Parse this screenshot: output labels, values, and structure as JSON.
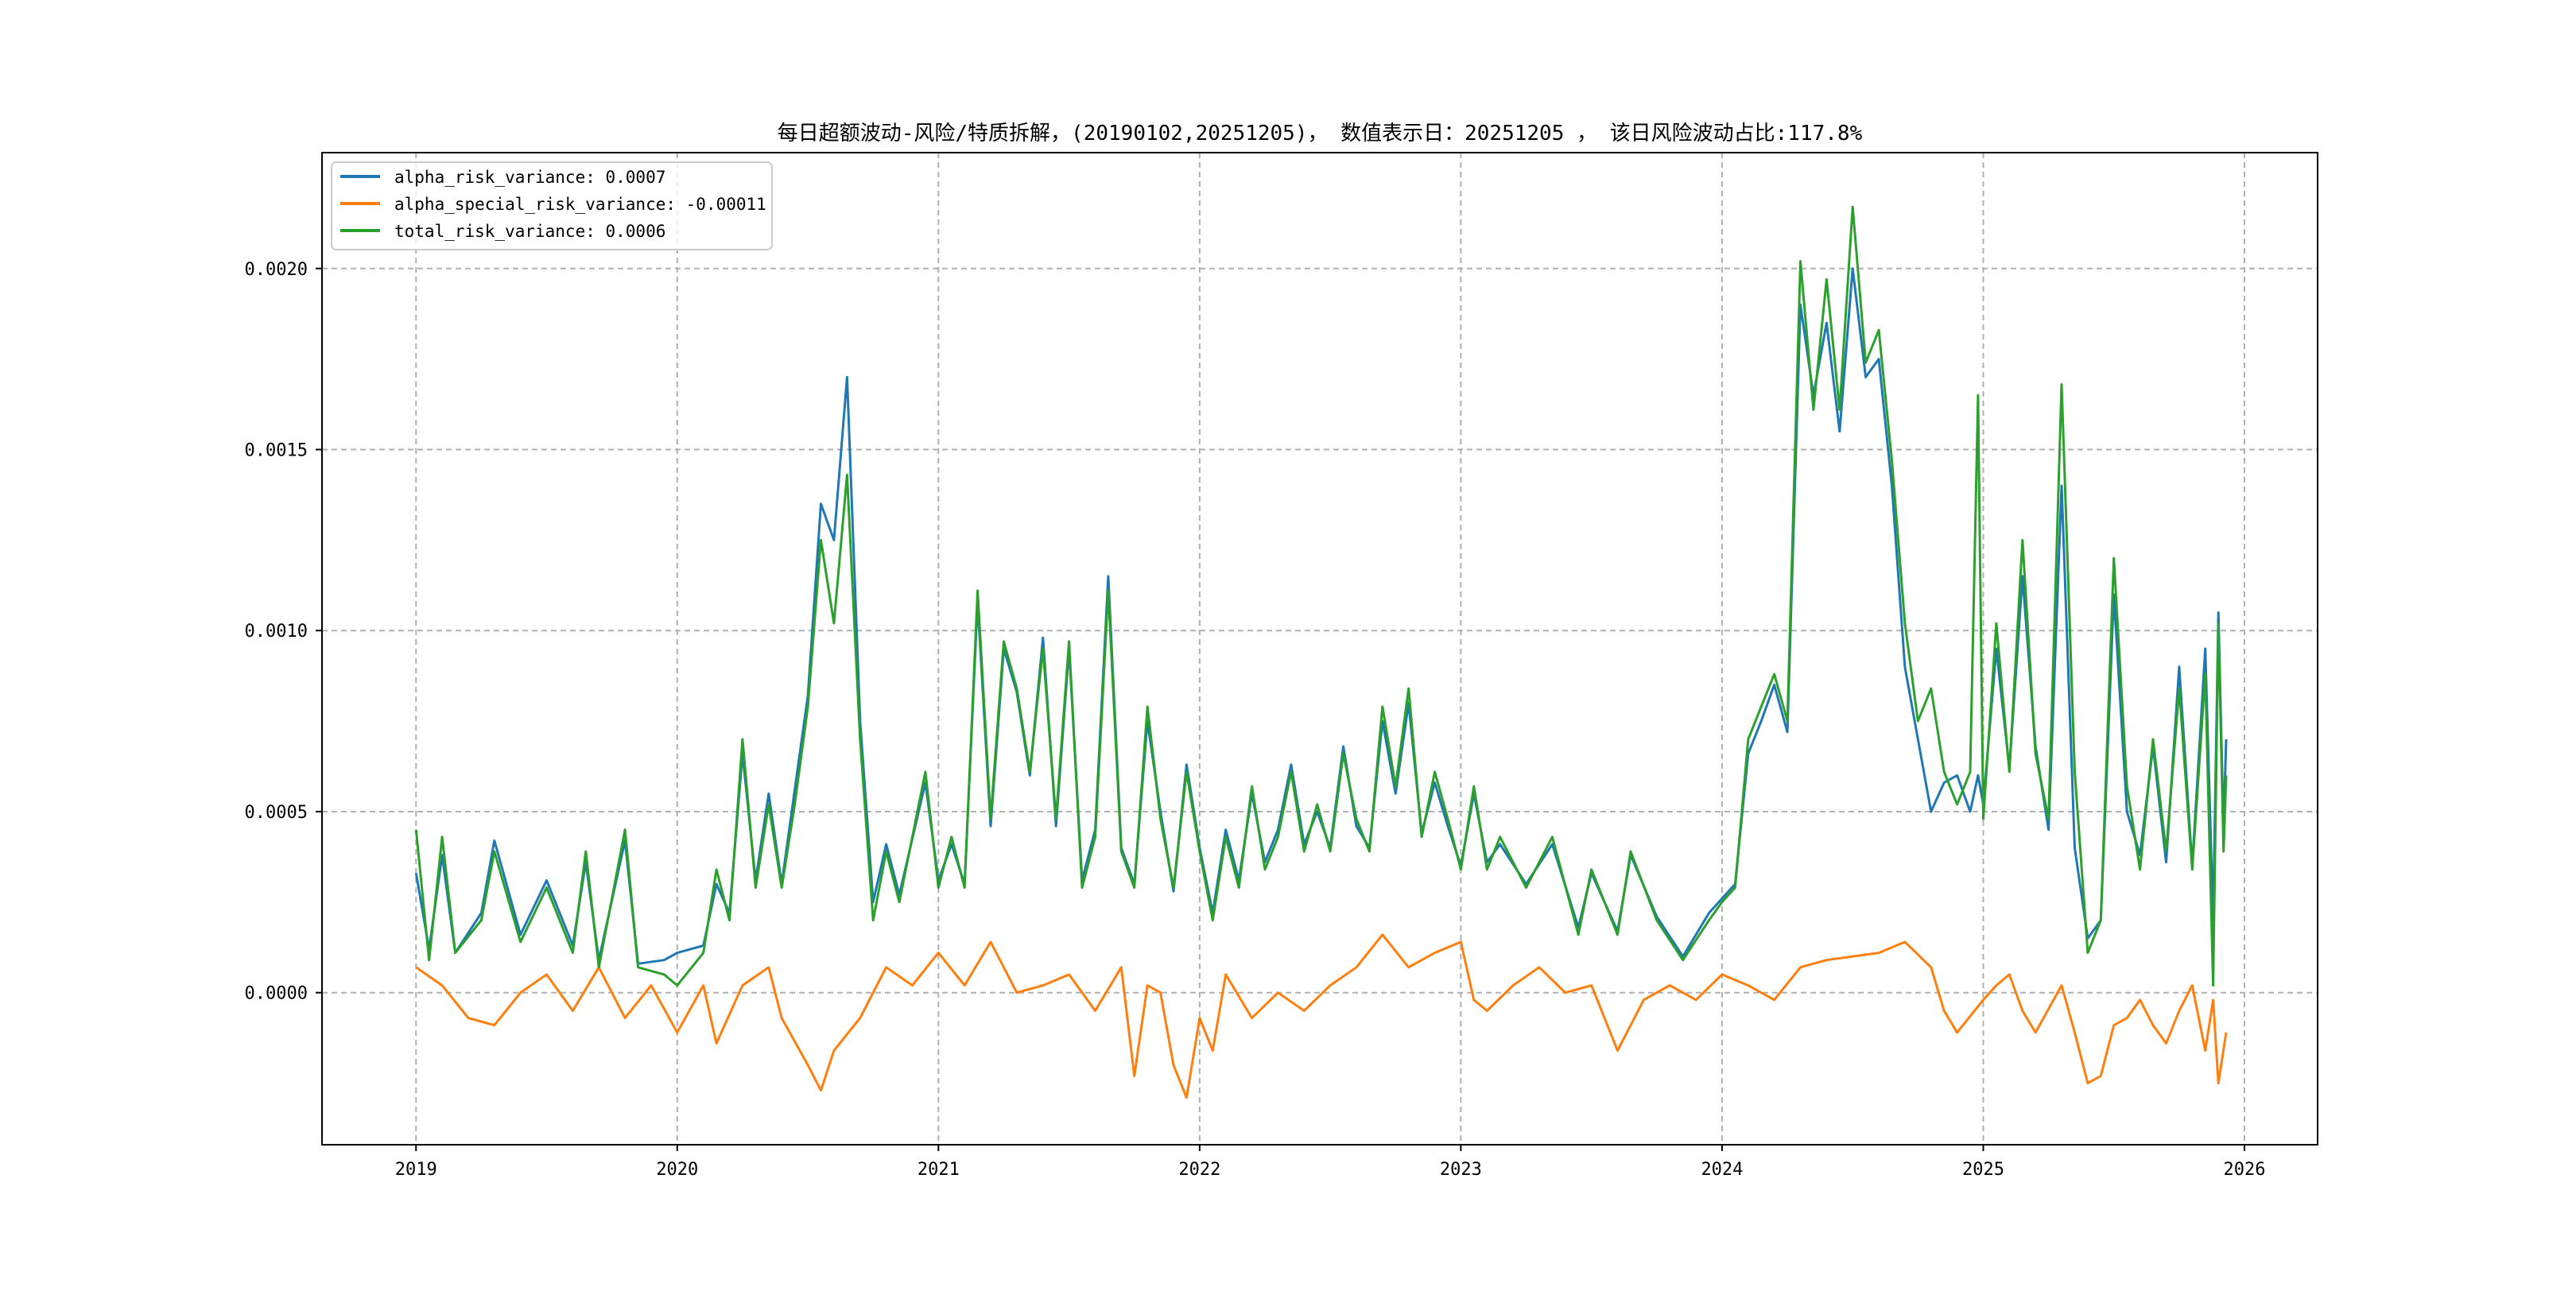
{
  "chart_data": {
    "type": "line",
    "title": "每日超额波动-风险/特质拆解，(20190102,20251205)， 数值表示日：20251205 ， 该日风险波动占比:117.8%",
    "xlabel": "",
    "ylabel": "",
    "xlim": [
      2018.64,
      2026.28
    ],
    "ylim": [
      -0.00042,
      0.00232
    ],
    "grid": true,
    "legend_position": "top-left",
    "x_ticks": [
      2019,
      2020,
      2021,
      2022,
      2023,
      2024,
      2025,
      2026
    ],
    "x_tick_labels": [
      "2019",
      "2020",
      "2021",
      "2022",
      "2023",
      "2024",
      "2025",
      "2026"
    ],
    "y_ticks": [
      0,
      0.0005,
      0.001,
      0.0015,
      0.002
    ],
    "y_tick_labels": [
      "0.0000",
      "0.0005",
      "0.0010",
      "0.0015",
      "0.0020"
    ],
    "series": [
      {
        "name": "alpha_risk_variance",
        "legend_label": "alpha_risk_variance: 0.0007",
        "color": "#1f77b4",
        "x": [
          2019.0,
          2019.05,
          2019.1,
          2019.15,
          2019.25,
          2019.3,
          2019.4,
          2019.5,
          2019.6,
          2019.65,
          2019.7,
          2019.8,
          2019.85,
          2019.95,
          2020.0,
          2020.1,
          2020.15,
          2020.2,
          2020.25,
          2020.3,
          2020.35,
          2020.4,
          2020.45,
          2020.5,
          2020.55,
          2020.6,
          2020.65,
          2020.7,
          2020.75,
          2020.8,
          2020.85,
          2020.95,
          2021.0,
          2021.05,
          2021.1,
          2021.15,
          2021.2,
          2021.25,
          2021.3,
          2021.35,
          2021.4,
          2021.45,
          2021.5,
          2021.55,
          2021.6,
          2021.65,
          2021.7,
          2021.75,
          2021.8,
          2021.85,
          2021.9,
          2021.95,
          2022.0,
          2022.05,
          2022.1,
          2022.15,
          2022.2,
          2022.25,
          2022.3,
          2022.35,
          2022.4,
          2022.45,
          2022.5,
          2022.55,
          2022.6,
          2022.65,
          2022.7,
          2022.75,
          2022.8,
          2022.85,
          2022.9,
          2022.95,
          2023.0,
          2023.05,
          2023.1,
          2023.15,
          2023.25,
          2023.35,
          2023.45,
          2023.5,
          2023.6,
          2023.65,
          2023.75,
          2023.85,
          2023.95,
          2024.0,
          2024.05,
          2024.1,
          2024.15,
          2024.2,
          2024.25,
          2024.3,
          2024.35,
          2024.4,
          2024.45,
          2024.5,
          2024.55,
          2024.6,
          2024.65,
          2024.7,
          2024.75,
          2024.8,
          2024.85,
          2024.9,
          2024.95,
          2024.98,
          2025.0,
          2025.05,
          2025.1,
          2025.15,
          2025.2,
          2025.25,
          2025.3,
          2025.35,
          2025.4,
          2025.45,
          2025.5,
          2025.55,
          2025.6,
          2025.65,
          2025.7,
          2025.75,
          2025.8,
          2025.85,
          2025.88,
          2025.9,
          2025.92,
          2025.93
        ],
        "values": [
          0.00033,
          0.00012,
          0.00038,
          0.00011,
          0.00022,
          0.00042,
          0.00016,
          0.00031,
          0.00013,
          0.00036,
          9e-05,
          0.00042,
          8e-05,
          9e-05,
          0.00011,
          0.00013,
          0.0003,
          0.00022,
          0.00066,
          0.00031,
          0.00055,
          0.0003,
          0.00056,
          0.00082,
          0.00135,
          0.00125,
          0.0017,
          0.00075,
          0.00025,
          0.00041,
          0.00027,
          0.00058,
          0.00031,
          0.00041,
          0.0003,
          0.00108,
          0.00046,
          0.00095,
          0.00083,
          0.0006,
          0.00098,
          0.00046,
          0.00095,
          0.00031,
          0.00045,
          0.00115,
          0.0004,
          0.0003,
          0.00075,
          0.0005,
          0.00028,
          0.00063,
          0.0004,
          0.00022,
          0.00045,
          0.00031,
          0.00055,
          0.00036,
          0.00045,
          0.00063,
          0.00041,
          0.0005,
          0.0004,
          0.00068,
          0.00046,
          0.0004,
          0.00075,
          0.00055,
          0.0008,
          0.00044,
          0.00058,
          0.00046,
          0.00035,
          0.00055,
          0.00036,
          0.00041,
          0.0003,
          0.00041,
          0.00018,
          0.00033,
          0.00017,
          0.00038,
          0.00021,
          0.0001,
          0.00022,
          0.00026,
          0.0003,
          0.00066,
          0.00075,
          0.00085,
          0.00072,
          0.0019,
          0.00165,
          0.00185,
          0.00155,
          0.002,
          0.0017,
          0.00175,
          0.0014,
          0.0009,
          0.0007,
          0.0005,
          0.00058,
          0.0006,
          0.0005,
          0.0006,
          0.00052,
          0.00095,
          0.00062,
          0.00115,
          0.00068,
          0.00045,
          0.0014,
          0.0004,
          0.00015,
          0.0002,
          0.0011,
          0.0005,
          0.00038,
          0.00068,
          0.00036,
          0.0009,
          0.00035,
          0.00095,
          0.0002,
          0.00105,
          0.00045,
          0.0007
        ]
      },
      {
        "name": "alpha_special_risk_variance",
        "legend_label": "alpha_special_risk_variance: -0.00011",
        "color": "#ff7f0e",
        "x": [
          2019.0,
          2019.1,
          2019.2,
          2019.3,
          2019.4,
          2019.5,
          2019.6,
          2019.7,
          2019.8,
          2019.9,
          2020.0,
          2020.1,
          2020.15,
          2020.25,
          2020.35,
          2020.4,
          2020.5,
          2020.55,
          2020.6,
          2020.7,
          2020.8,
          2020.9,
          2021.0,
          2021.1,
          2021.2,
          2021.3,
          2021.4,
          2021.5,
          2021.6,
          2021.7,
          2021.75,
          2021.8,
          2021.85,
          2021.9,
          2021.95,
          2022.0,
          2022.05,
          2022.1,
          2022.2,
          2022.3,
          2022.4,
          2022.5,
          2022.6,
          2022.7,
          2022.8,
          2022.9,
          2023.0,
          2023.05,
          2023.1,
          2023.2,
          2023.3,
          2023.4,
          2023.5,
          2023.6,
          2023.7,
          2023.8,
          2023.9,
          2024.0,
          2024.1,
          2024.2,
          2024.3,
          2024.4,
          2024.5,
          2024.6,
          2024.7,
          2024.8,
          2024.85,
          2024.9,
          2025.0,
          2025.05,
          2025.1,
          2025.15,
          2025.2,
          2025.3,
          2025.35,
          2025.4,
          2025.45,
          2025.5,
          2025.55,
          2025.6,
          2025.65,
          2025.7,
          2025.75,
          2025.8,
          2025.85,
          2025.88,
          2025.9,
          2025.93
        ],
        "values": [
          7e-05,
          2e-05,
          -7e-05,
          -9e-05,
          0.0,
          5e-05,
          -5e-05,
          7e-05,
          -7e-05,
          2e-05,
          -0.00011,
          2e-05,
          -0.00014,
          2e-05,
          7e-05,
          -7e-05,
          -0.0002,
          -0.00027,
          -0.00016,
          -7e-05,
          7e-05,
          2e-05,
          0.00011,
          2e-05,
          0.00014,
          0.0,
          2e-05,
          5e-05,
          -5e-05,
          7e-05,
          -0.00023,
          2e-05,
          0.0,
          -0.0002,
          -0.00029,
          -7e-05,
          -0.00016,
          5e-05,
          -7e-05,
          0.0,
          -5e-05,
          2e-05,
          7e-05,
          0.00016,
          7e-05,
          0.00011,
          0.00014,
          -2e-05,
          -5e-05,
          2e-05,
          7e-05,
          0.0,
          2e-05,
          -0.00016,
          -2e-05,
          2e-05,
          -2e-05,
          5e-05,
          2e-05,
          -2e-05,
          7e-05,
          9e-05,
          0.0001,
          0.00011,
          0.00014,
          7e-05,
          -5e-05,
          -0.00011,
          -2e-05,
          2e-05,
          5e-05,
          -5e-05,
          -0.00011,
          2e-05,
          -0.00011,
          -0.00025,
          -0.00023,
          -9e-05,
          -7e-05,
          -2e-05,
          -9e-05,
          -0.00014,
          -5e-05,
          2e-05,
          -0.00016,
          -2e-05,
          -0.00025,
          -0.00011
        ]
      },
      {
        "name": "total_risk_variance",
        "legend_label": "total_risk_variance: 0.0006",
        "color": "#2ca02c",
        "x": [
          2019.0,
          2019.05,
          2019.1,
          2019.15,
          2019.25,
          2019.3,
          2019.4,
          2019.5,
          2019.6,
          2019.65,
          2019.7,
          2019.8,
          2019.85,
          2019.95,
          2020.0,
          2020.1,
          2020.15,
          2020.2,
          2020.25,
          2020.3,
          2020.35,
          2020.4,
          2020.45,
          2020.5,
          2020.55,
          2020.6,
          2020.65,
          2020.7,
          2020.75,
          2020.8,
          2020.85,
          2020.95,
          2021.0,
          2021.05,
          2021.1,
          2021.15,
          2021.2,
          2021.25,
          2021.3,
          2021.35,
          2021.4,
          2021.45,
          2021.5,
          2021.55,
          2021.6,
          2021.65,
          2021.7,
          2021.75,
          2021.8,
          2021.85,
          2021.9,
          2021.95,
          2022.0,
          2022.05,
          2022.1,
          2022.15,
          2022.2,
          2022.25,
          2022.3,
          2022.35,
          2022.4,
          2022.45,
          2022.5,
          2022.55,
          2022.6,
          2022.65,
          2022.7,
          2022.75,
          2022.8,
          2022.85,
          2022.9,
          2022.95,
          2023.0,
          2023.05,
          2023.1,
          2023.15,
          2023.25,
          2023.35,
          2023.45,
          2023.5,
          2023.6,
          2023.65,
          2023.75,
          2023.85,
          2023.95,
          2024.0,
          2024.05,
          2024.1,
          2024.15,
          2024.2,
          2024.25,
          2024.3,
          2024.35,
          2024.4,
          2024.45,
          2024.5,
          2024.55,
          2024.6,
          2024.65,
          2024.7,
          2024.75,
          2024.8,
          2024.85,
          2024.9,
          2024.95,
          2024.98,
          2025.0,
          2025.05,
          2025.1,
          2025.15,
          2025.2,
          2025.25,
          2025.3,
          2025.35,
          2025.4,
          2025.45,
          2025.5,
          2025.55,
          2025.6,
          2025.65,
          2025.7,
          2025.75,
          2025.8,
          2025.85,
          2025.88,
          2025.9,
          2025.92,
          2025.93
        ],
        "values": [
          0.00045,
          9e-05,
          0.00043,
          0.00011,
          0.0002,
          0.00039,
          0.00014,
          0.00029,
          0.00011,
          0.00039,
          7e-05,
          0.00045,
          7e-05,
          5e-05,
          2e-05,
          0.00011,
          0.00034,
          0.0002,
          0.0007,
          0.00029,
          0.00052,
          0.00029,
          0.00052,
          0.00079,
          0.00125,
          0.00102,
          0.00143,
          0.0007,
          0.0002,
          0.00039,
          0.00025,
          0.00061,
          0.00029,
          0.00043,
          0.00029,
          0.00111,
          0.00048,
          0.00097,
          0.00084,
          0.00061,
          0.00095,
          0.00048,
          0.00097,
          0.00029,
          0.00043,
          0.00111,
          0.00039,
          0.00029,
          0.00079,
          0.00048,
          0.00029,
          0.00061,
          0.00039,
          0.0002,
          0.00043,
          0.00029,
          0.00057,
          0.00034,
          0.00043,
          0.00061,
          0.00039,
          0.00052,
          0.00039,
          0.00066,
          0.00048,
          0.00039,
          0.00079,
          0.00057,
          0.00084,
          0.00043,
          0.00061,
          0.00048,
          0.00034,
          0.00057,
          0.00034,
          0.00043,
          0.00029,
          0.00043,
          0.00016,
          0.00034,
          0.00016,
          0.00039,
          0.0002,
          9e-05,
          0.0002,
          0.00025,
          0.00029,
          0.0007,
          0.00079,
          0.00088,
          0.00075,
          0.00202,
          0.00161,
          0.00197,
          0.00161,
          0.00217,
          0.00174,
          0.00183,
          0.00147,
          0.00102,
          0.00075,
          0.00084,
          0.00061,
          0.00052,
          0.00061,
          0.00165,
          0.00048,
          0.00102,
          0.00061,
          0.00125,
          0.00066,
          0.00048,
          0.00168,
          0.00061,
          0.00011,
          0.0002,
          0.0012,
          0.00057,
          0.00034,
          0.0007,
          0.00039,
          0.00084,
          0.00034,
          0.00088,
          2e-05,
          0.00102,
          0.00039,
          0.0006
        ]
      }
    ]
  }
}
